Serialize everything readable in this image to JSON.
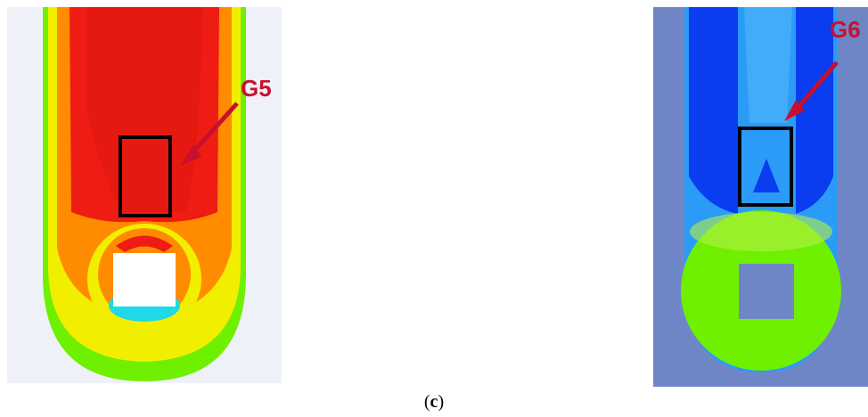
{
  "figure": {
    "left_panel": {
      "gauge_label": "G5"
    },
    "right_panel": {
      "gauge_label": "G6"
    },
    "caption": {
      "open": "(",
      "letter": "c",
      "close": ")"
    },
    "colors": {
      "annotation_red": "#c8102e",
      "contour_red": "#ee1c12",
      "contour_orange": "#ff8c00",
      "contour_yellow": "#f2ee00",
      "contour_green": "#6ef000",
      "contour_cyan": "#1fd8e8",
      "contour_blue": "#0a3cf0",
      "contour_light_blue": "#2a9cf8",
      "background_light": "#eef1f8",
      "background_blue_grey": "#6f86c6"
    }
  }
}
